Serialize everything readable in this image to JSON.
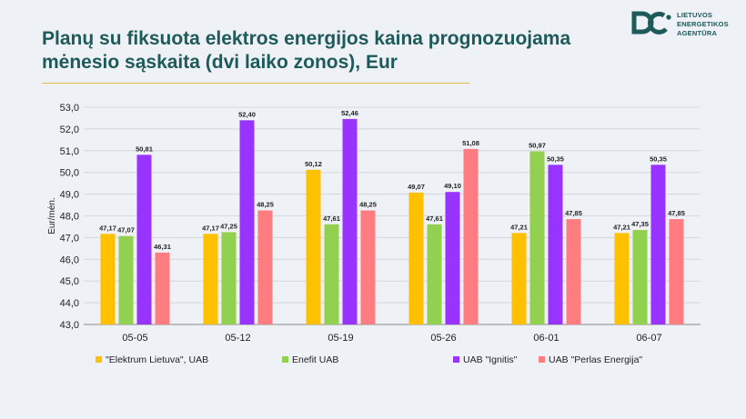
{
  "page": {
    "title_line1": "Planų su fiksuota elektros energijos kaina prognozuojama",
    "title_line2": "mėnesio sąskaita (dvi laiko zonos), Eur"
  },
  "logo": {
    "line1": "LIETUVOS",
    "line2": "ENERGETIKOS",
    "line3": "AGENTŪRA",
    "color": "#1f5a5a"
  },
  "chart_data": {
    "type": "bar",
    "ylabel": "Eur/mėn.",
    "ylim": [
      43.0,
      53.0
    ],
    "yticks": [
      "53,0",
      "52,0",
      "51,0",
      "50,0",
      "49,0",
      "48,0",
      "47,0",
      "46,0",
      "45,0",
      "44,0",
      "43,0"
    ],
    "ytick_values": [
      53,
      52,
      51,
      50,
      49,
      48,
      47,
      46,
      45,
      44,
      43
    ],
    "grid": true,
    "legend_position": "bottom",
    "categories": [
      "05-05",
      "05-12",
      "05-19",
      "05-26",
      "06-01",
      "06-07"
    ],
    "series": [
      {
        "name": "\"Elektrum Lietuva\", UAB",
        "color": "#ffc000",
        "values": [
          47.17,
          47.17,
          50.12,
          49.07,
          47.21,
          47.21
        ],
        "labels": [
          "47,17",
          "47,17",
          "50,12",
          "49,07",
          "47,21",
          "47,21"
        ]
      },
      {
        "name": "Enefit UAB",
        "color": "#92d050",
        "values": [
          47.07,
          47.25,
          47.61,
          47.61,
          50.97,
          47.35
        ],
        "labels": [
          "47,07",
          "47,25",
          "47,61",
          "47,61",
          "50,97",
          "47,35"
        ]
      },
      {
        "name": "UAB \"Ignitis\"",
        "color": "#9933ff",
        "values": [
          50.81,
          52.4,
          52.46,
          49.1,
          50.35,
          50.35
        ],
        "labels": [
          "50,81",
          "52,40",
          "52,46",
          "49,10",
          "50,35",
          "50,35"
        ]
      },
      {
        "name": "UAB \"Perlas Energija\"",
        "color": "#ff7c80",
        "values": [
          46.31,
          48.25,
          48.25,
          51.08,
          47.85,
          47.85
        ],
        "labels": [
          "46,31",
          "48,25",
          "48,25",
          "51,08",
          "47,85",
          "47,85"
        ]
      }
    ]
  }
}
